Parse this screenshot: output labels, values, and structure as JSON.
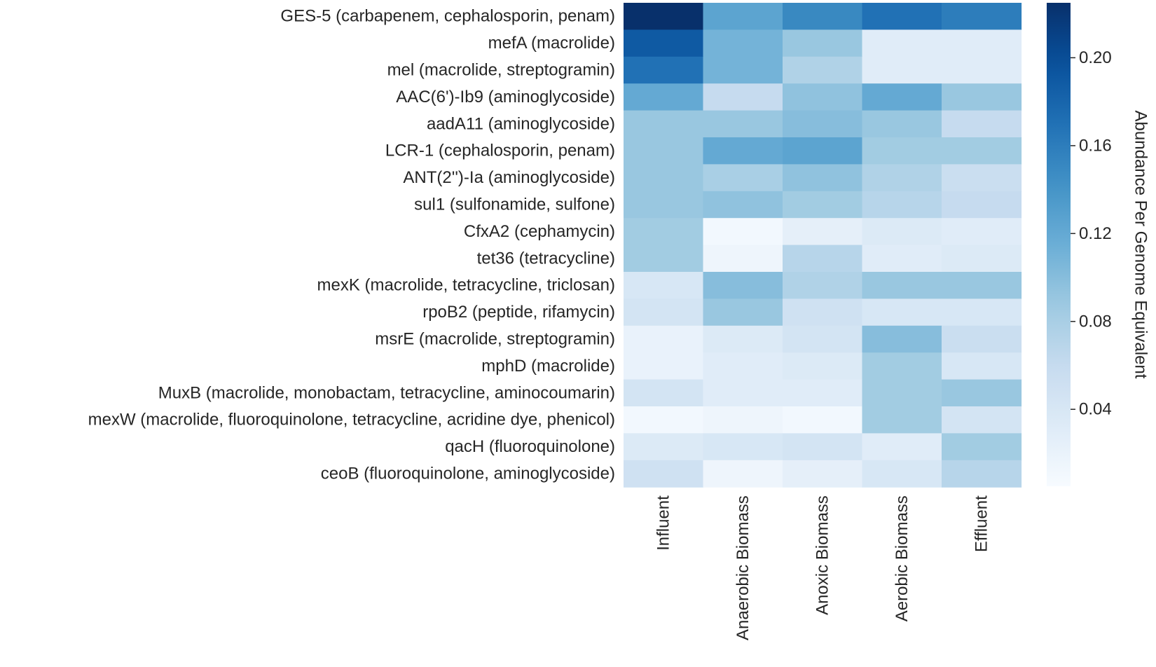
{
  "chart_data": {
    "type": "heatmap",
    "title": "",
    "rows": [
      "GES-5 (carbapenem, cephalosporin, penam)",
      "mefA (macrolide)",
      "mel (macrolide, streptogramin)",
      "AAC(6')-Ib9 (aminoglycoside)",
      "aadA11 (aminoglycoside)",
      "LCR-1 (cephalosporin, penam)",
      "ANT(2'')-Ia (aminoglycoside)",
      "sul1 (sulfonamide, sulfone)",
      "CfxA2 (cephamycin)",
      "tet36 (tetracycline)",
      "mexK (macrolide, tetracycline, triclosan)",
      "rpoB2 (peptide, rifamycin)",
      "msrE (macrolide, streptogramin)",
      "mphD (macrolide)",
      "MuxB (macrolide, monobactam, tetracycline, aminocoumarin)",
      "mexW (macrolide, fluoroquinolone, tetracycline, acridine dye, phenicol)",
      "qacH (fluoroquinolone)",
      "ceoB (fluoroquinolone, aminoglycoside)"
    ],
    "columns": [
      "Influent",
      "Anaerobic Biomass",
      "Anoxic Biomass",
      "Aerobic Biomass",
      "Effluent"
    ],
    "values": [
      [
        0.225,
        0.125,
        0.15,
        0.17,
        0.16
      ],
      [
        0.19,
        0.11,
        0.09,
        0.03,
        0.03
      ],
      [
        0.17,
        0.11,
        0.075,
        0.03,
        0.03
      ],
      [
        0.12,
        0.06,
        0.095,
        0.12,
        0.09
      ],
      [
        0.09,
        0.09,
        0.1,
        0.09,
        0.06
      ],
      [
        0.09,
        0.12,
        0.125,
        0.085,
        0.085
      ],
      [
        0.09,
        0.08,
        0.095,
        0.075,
        0.055
      ],
      [
        0.09,
        0.095,
        0.085,
        0.07,
        0.06
      ],
      [
        0.085,
        0.01,
        0.025,
        0.035,
        0.03
      ],
      [
        0.085,
        0.015,
        0.07,
        0.03,
        0.035
      ],
      [
        0.04,
        0.1,
        0.075,
        0.09,
        0.09
      ],
      [
        0.045,
        0.09,
        0.05,
        0.04,
        0.04
      ],
      [
        0.02,
        0.035,
        0.045,
        0.1,
        0.055
      ],
      [
        0.02,
        0.03,
        0.035,
        0.085,
        0.04
      ],
      [
        0.045,
        0.03,
        0.03,
        0.085,
        0.09
      ],
      [
        0.01,
        0.015,
        0.01,
        0.085,
        0.045
      ],
      [
        0.035,
        0.04,
        0.045,
        0.03,
        0.085
      ],
      [
        0.05,
        0.015,
        0.025,
        0.04,
        0.07
      ]
    ],
    "vmin": 0.005,
    "vmax": 0.225,
    "colormap": "Blues",
    "colorbar": {
      "label": "Abundance Per Genome Equivalent",
      "ticks": [
        0.04,
        0.08,
        0.12,
        0.16,
        0.2
      ],
      "tick_labels": [
        "0.04",
        "0.08",
        "0.12",
        "0.16",
        "0.20"
      ]
    }
  }
}
